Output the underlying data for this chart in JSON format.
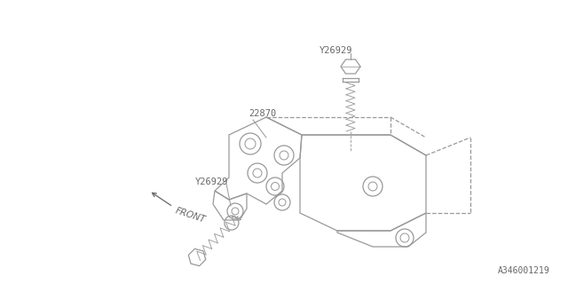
{
  "bg_color": "#ffffff",
  "line_color": "#999999",
  "text_color": "#666666",
  "diagram_id": "A346001219",
  "labels": {
    "part1": "22870",
    "part2_top": "Y26929",
    "part3_bottom": "Y26929",
    "front": "FRONT",
    "diagram_id": "A346001219"
  }
}
